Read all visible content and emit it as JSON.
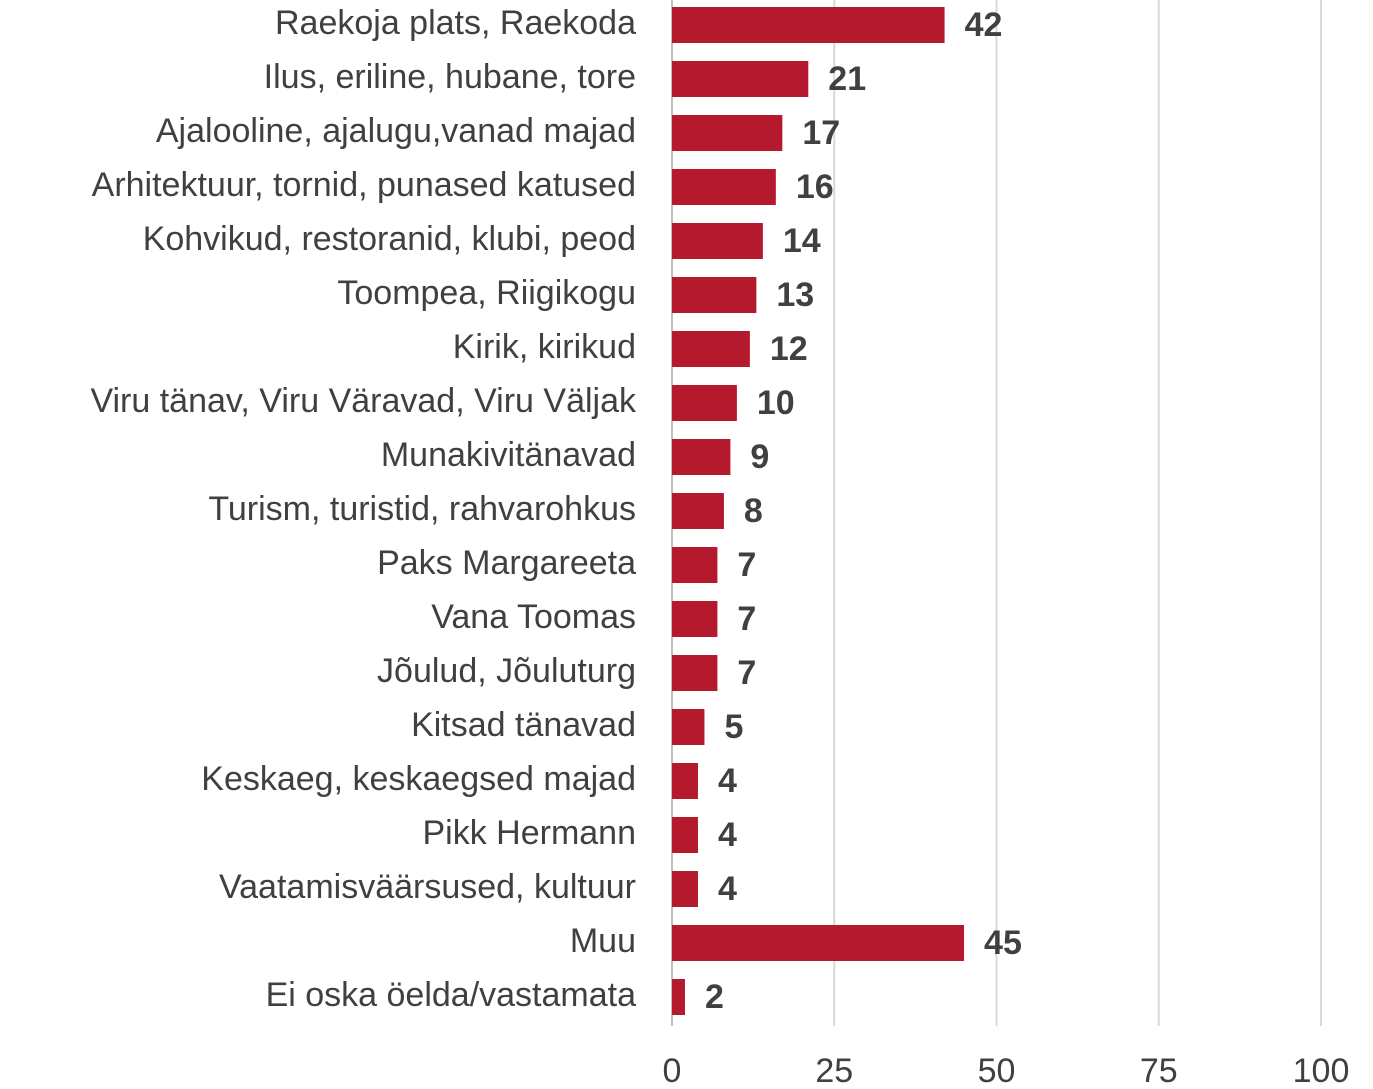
{
  "chart_data": {
    "type": "bar",
    "orientation": "horizontal",
    "categories": [
      "Raekoja plats, Raekoda",
      "Ilus, eriline, hubane, tore",
      "Ajalooline, ajalugu,vanad majad",
      "Arhitektuur, tornid, punased katused",
      "Kohvikud, restoranid, klubi, peod",
      "Toompea, Riigikogu",
      "Kirik, kirikud",
      "Viru tänav, Viru Väravad, Viru Väljak",
      "Munakivitänavad",
      "Turism, turistid, rahvarohkus",
      "Paks Margareeta",
      "Vana Toomas",
      "Jõulud, Jõuluturg",
      "Kitsad tänavad",
      "Keskaeg, keskaegsed majad",
      "Pikk Hermann",
      "Vaatamisväärsused, kultuur",
      "Muu",
      "Ei oska öelda/vastamata"
    ],
    "values": [
      42,
      21,
      17,
      16,
      14,
      13,
      12,
      10,
      9,
      8,
      7,
      7,
      7,
      5,
      4,
      4,
      4,
      45,
      2
    ],
    "color": "#b5192d",
    "xlim": [
      0,
      100
    ],
    "xticks": [
      0,
      25,
      50,
      75,
      100
    ],
    "grid": true
  }
}
